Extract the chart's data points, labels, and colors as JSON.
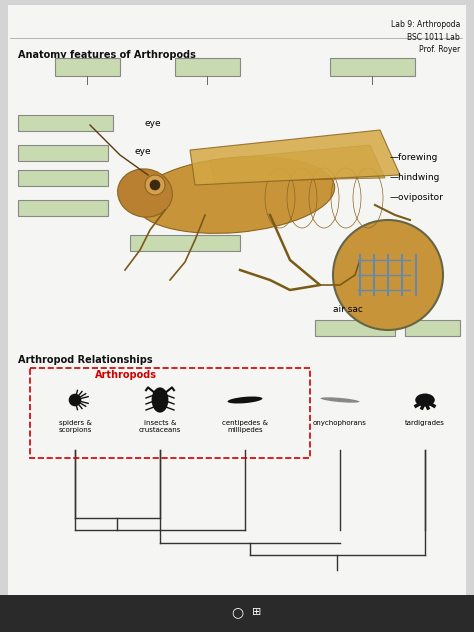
{
  "background_color": "#d4d4d4",
  "page_bg": "#f0f0f0",
  "header_text": "Lab 9: Arthropoda\nBSC 1011 Lab\nProf. Royer",
  "section1_title": "Anatomy features of Arthropods",
  "labels_right": [
    "forewing",
    "hindwing",
    "ovipositor"
  ],
  "label_airsac": "air sac",
  "section2_title": "Arthropod Relationships",
  "section2_subtitle": "Arthropods",
  "clade_labels": [
    "spiders &\nscorpions",
    "insects &\ncrustaceans",
    "centipedes &\nmillipedes",
    "onychophorans",
    "tardigrades"
  ],
  "box_color": "#c8dab0",
  "box_color2": "#d4e8b0",
  "border_color": "#888888",
  "red_border": "#cc0000",
  "text_color": "#111111",
  "text_color_red": "#cc0000"
}
